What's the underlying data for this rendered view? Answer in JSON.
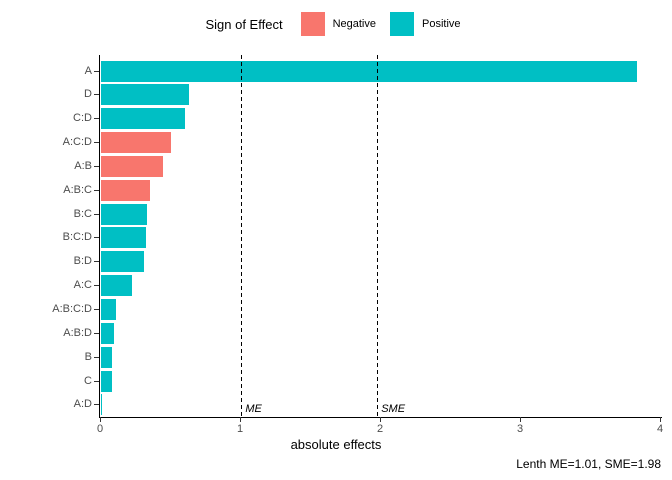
{
  "chart_data": {
    "type": "bar",
    "orientation": "horizontal",
    "xlabel": "absolute effects",
    "ylabel": "",
    "xlim": [
      0,
      4
    ],
    "xticks": [
      0,
      1,
      2,
      3,
      4
    ],
    "grid": false,
    "legend": {
      "title": "Sign of Effect",
      "position": "top",
      "entries": [
        {
          "label": "Negative",
          "color": "#F8766D"
        },
        {
          "label": "Positive",
          "color": "#00BFC4"
        }
      ]
    },
    "categories": [
      "A",
      "D",
      "C:D",
      "A:C:D",
      "A:B",
      "A:B:C",
      "B:C",
      "B:C:D",
      "B:D",
      "A:C",
      "A:B:C:D",
      "A:B:D",
      "B",
      "C",
      "A:D"
    ],
    "series": [
      {
        "name": "absolute effect",
        "values": [
          3.83,
          0.63,
          0.6,
          0.5,
          0.44,
          0.35,
          0.33,
          0.32,
          0.31,
          0.22,
          0.11,
          0.09,
          0.08,
          0.08,
          0.01
        ],
        "signs": [
          "Positive",
          "Positive",
          "Positive",
          "Negative",
          "Negative",
          "Negative",
          "Positive",
          "Positive",
          "Positive",
          "Positive",
          "Positive",
          "Positive",
          "Positive",
          "Positive",
          "Positive"
        ]
      }
    ],
    "reference_lines": [
      {
        "label": "ME",
        "x": 1.01,
        "style": "dashed"
      },
      {
        "label": "SME",
        "x": 1.98,
        "style": "dashed"
      }
    ],
    "caption": "Lenth ME=1.01, SME=1.98"
  },
  "colors": {
    "negative": "#F8766D",
    "positive": "#00BFC4",
    "axis_text": "#4d4d4d",
    "axis_line": "#000000",
    "background": "#ffffff"
  }
}
